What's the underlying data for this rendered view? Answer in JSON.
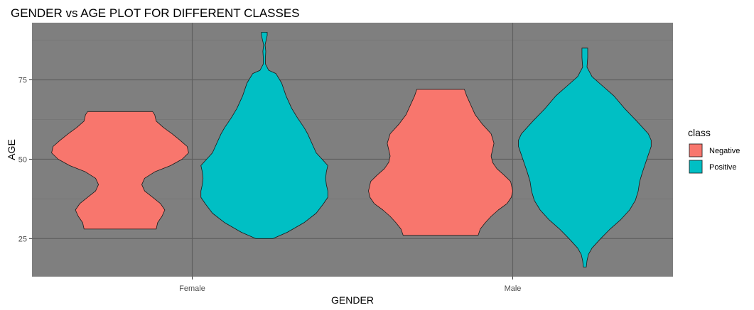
{
  "chart_data": {
    "type": "violin",
    "title": "GENDER vs AGE PLOT FOR DIFFERENT CLASSES",
    "xlabel": "GENDER",
    "ylabel": "AGE",
    "categories": [
      "Female",
      "Male"
    ],
    "y_ticks": [
      25,
      50,
      75
    ],
    "ylim": [
      13,
      93
    ],
    "grid": true,
    "panel_background": "#7f7f7f",
    "legend": {
      "title": "class",
      "position": "right",
      "entries": [
        {
          "label": "Negative",
          "color": "#F8766D"
        },
        {
          "label": "Positive",
          "color": "#00BFC4"
        }
      ]
    },
    "series": [
      {
        "name": "Negative",
        "color": "#F8766D",
        "violins": [
          {
            "category": "Female",
            "min": 28,
            "max": 65,
            "profile": [
              [
                28,
                0.5
              ],
              [
                30,
                0.52
              ],
              [
                32,
                0.58
              ],
              [
                34,
                0.62
              ],
              [
                36,
                0.56
              ],
              [
                38,
                0.45
              ],
              [
                40,
                0.34
              ],
              [
                42,
                0.3
              ],
              [
                44,
                0.34
              ],
              [
                46,
                0.48
              ],
              [
                48,
                0.7
              ],
              [
                50,
                0.86
              ],
              [
                52,
                0.95
              ],
              [
                54,
                0.93
              ],
              [
                56,
                0.83
              ],
              [
                58,
                0.72
              ],
              [
                60,
                0.6
              ],
              [
                62,
                0.5
              ],
              [
                64,
                0.48
              ],
              [
                65,
                0.45
              ]
            ]
          },
          {
            "category": "Male",
            "min": 26,
            "max": 72,
            "profile": [
              [
                26,
                0.52
              ],
              [
                28,
                0.55
              ],
              [
                30,
                0.62
              ],
              [
                32,
                0.7
              ],
              [
                34,
                0.8
              ],
              [
                36,
                0.92
              ],
              [
                38,
                0.98
              ],
              [
                40,
                1.0
              ],
              [
                42,
                0.98
              ],
              [
                43,
                0.97
              ],
              [
                45,
                0.88
              ],
              [
                47,
                0.78
              ],
              [
                49,
                0.72
              ],
              [
                51,
                0.7
              ],
              [
                53,
                0.72
              ],
              [
                55,
                0.74
              ],
              [
                58,
                0.7
              ],
              [
                61,
                0.58
              ],
              [
                64,
                0.48
              ],
              [
                67,
                0.42
              ],
              [
                70,
                0.36
              ],
              [
                72,
                0.33
              ]
            ]
          }
        ]
      },
      {
        "name": "Positive",
        "color": "#00BFC4",
        "violins": [
          {
            "category": "Female",
            "min": 25,
            "max": 90,
            "profile": [
              [
                25,
                0.12
              ],
              [
                27,
                0.32
              ],
              [
                30,
                0.55
              ],
              [
                33,
                0.72
              ],
              [
                36,
                0.82
              ],
              [
                38,
                0.88
              ],
              [
                40,
                0.88
              ],
              [
                42,
                0.86
              ],
              [
                44,
                0.85
              ],
              [
                46,
                0.86
              ],
              [
                48,
                0.88
              ],
              [
                50,
                0.8
              ],
              [
                52,
                0.72
              ],
              [
                55,
                0.66
              ],
              [
                58,
                0.6
              ],
              [
                60,
                0.55
              ],
              [
                63,
                0.46
              ],
              [
                66,
                0.38
              ],
              [
                70,
                0.3
              ],
              [
                74,
                0.24
              ],
              [
                77,
                0.16
              ],
              [
                78,
                0.06
              ],
              [
                80,
                0.015
              ],
              [
                82,
                0.015
              ],
              [
                84,
                0.02
              ],
              [
                86,
                0.01
              ],
              [
                88,
                0.03
              ],
              [
                89,
                0.04
              ],
              [
                90,
                0.04
              ]
            ]
          },
          {
            "category": "Male",
            "min": 16,
            "max": 85,
            "profile": [
              [
                16,
                0.02
              ],
              [
                18,
                0.03
              ],
              [
                20,
                0.05
              ],
              [
                22,
                0.1
              ],
              [
                25,
                0.22
              ],
              [
                28,
                0.35
              ],
              [
                31,
                0.5
              ],
              [
                34,
                0.62
              ],
              [
                37,
                0.7
              ],
              [
                40,
                0.74
              ],
              [
                43,
                0.76
              ],
              [
                46,
                0.8
              ],
              [
                50,
                0.86
              ],
              [
                54,
                0.92
              ],
              [
                56,
                0.92
              ],
              [
                58,
                0.88
              ],
              [
                62,
                0.72
              ],
              [
                66,
                0.55
              ],
              [
                70,
                0.4
              ],
              [
                73,
                0.25
              ],
              [
                76,
                0.1
              ],
              [
                79,
                0.03
              ],
              [
                82,
                0.04
              ],
              [
                85,
                0.04
              ]
            ]
          }
        ]
      }
    ]
  }
}
